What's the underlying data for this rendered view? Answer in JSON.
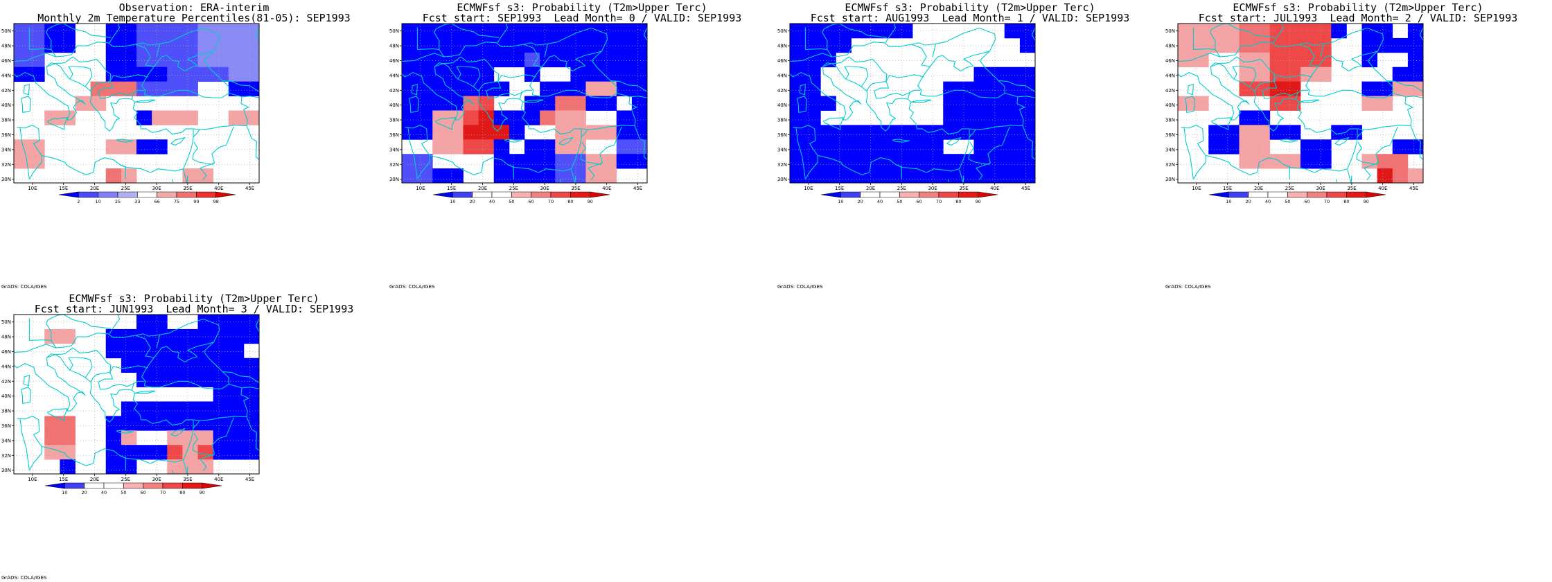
{
  "panels": [
    {
      "title_lines": [
        "Observation: ERA-interim",
        "Monthly 2m Temperature Percentiles(81-05): SEP1993"
      ],
      "colorbar": {
        "labels": [
          "2",
          "10",
          "25",
          "33",
          "66",
          "75",
          "90",
          "98"
        ],
        "colors": [
          "#0000ff",
          "#4a4afc",
          "#8080f8",
          "#b0b0f4",
          "#ffffff",
          "#f4a8a8",
          "#f47070",
          "#f03030",
          "#e00000"
        ]
      },
      "grid": [
        "BBAAWWAABBBBCCCC",
        "BBAAWWAABBBBCCCC",
        "BBWWWWAABBBBCCCC",
        "AAWWWWAAAABBBBCC",
        "WWWWWWFFBBBBWWAA",
        "WWWWEEWWWWWWWWWW",
        "WWEEWWWWAAEEWWEE",
        "WWWWWWWWWWWWWWWW",
        "EEWWWWEEAAWWWWWW",
        "EEWWWWWWWWWWWWWW",
        "WWWWWWWWWWWWWWWW"
      ],
      "cell_overrides": [
        {
          "row": 4,
          "col": 5,
          "v": "F"
        },
        {
          "row": 4,
          "col": 6,
          "v": "F"
        },
        {
          "row": 4,
          "col": 7,
          "v": "F"
        },
        {
          "row": 5,
          "col": 4,
          "v": "E"
        },
        {
          "row": 6,
          "col": 8,
          "v": "A"
        },
        {
          "row": 6,
          "col": 9,
          "v": "E"
        },
        {
          "row": 6,
          "col": 10,
          "v": "E"
        },
        {
          "row": 10,
          "col": 7,
          "v": "E"
        },
        {
          "row": 10,
          "col": 6,
          "v": "F"
        },
        {
          "row": 10,
          "col": 11,
          "v": "E"
        },
        {
          "row": 10,
          "col": 12,
          "v": "E"
        }
      ]
    },
    {
      "title_lines": [
        "ECMWFsf s3: Probability (T2m>Upper Terc)",
        "Fcst start: SEP1993  Lead Month= 0 / VALID: SEP1993"
      ],
      "colorbar": {
        "labels": [
          "10",
          "20",
          "40",
          "50",
          "60",
          "70",
          "80",
          "90"
        ],
        "colors": [
          "#0000ff",
          "#4040f8",
          "#ffffff",
          "#ffffff",
          "#f8b0b0",
          "#f48080",
          "#f04848",
          "#e81818",
          "#e00000"
        ]
      },
      "grid": [
        "AAAAAAAAAAAAAAAA",
        "AAAAAAAAAAAAAAAA",
        "AAAAAAAABBAAAAAA",
        "AAAAAAWWAAAAAAAA",
        "AAAAAAAWWAAAAAAA",
        "AAAAAAWWAAFFAAAA",
        "AAEEFFAAAAEEWWAA",
        "AAEEHHAAWWEEEEAA",
        "WWEEGGAAAAEEWWBB",
        "BBWWWWAAAABBEEAA",
        "BBAAWWAAAABBEEWW"
      ],
      "cell_overrides": [
        {
          "row": 3,
          "col": 4,
          "v": "A"
        },
        {
          "row": 4,
          "col": 4,
          "v": "A"
        },
        {
          "row": 5,
          "col": 4,
          "v": "F"
        },
        {
          "row": 5,
          "col": 5,
          "v": "G"
        },
        {
          "row": 6,
          "col": 4,
          "v": "G"
        },
        {
          "row": 6,
          "col": 5,
          "v": "H"
        },
        {
          "row": 7,
          "col": 6,
          "v": "H"
        },
        {
          "row": 8,
          "col": 7,
          "v": "W"
        },
        {
          "row": 4,
          "col": 12,
          "v": "E"
        },
        {
          "row": 4,
          "col": 13,
          "v": "E"
        },
        {
          "row": 5,
          "col": 14,
          "v": "W"
        },
        {
          "row": 6,
          "col": 9,
          "v": "F"
        },
        {
          "row": 3,
          "col": 9,
          "v": "W"
        },
        {
          "row": 3,
          "col": 10,
          "v": "W"
        },
        {
          "row": 2,
          "col": 9,
          "v": "A"
        }
      ]
    },
    {
      "title_lines": [
        "ECMWFsf s3: Probability (T2m>Upper Terc)",
        "Fcst start: AUG1993  Lead Month= 1 / VALID: SEP1993"
      ],
      "colorbar": {
        "labels": [
          "10",
          "20",
          "40",
          "50",
          "60",
          "70",
          "80",
          "90"
        ],
        "colors": [
          "#0000ff",
          "#4040f8",
          "#ffffff",
          "#ffffff",
          "#f8b0b0",
          "#f48080",
          "#f04848",
          "#e81818",
          "#e00000"
        ]
      },
      "grid": [
        "AAAAAAAAWWWWWWAA",
        "AAAAWWWWWWWWWWWA",
        "AAAWWWWWWWWWWWWW",
        "AAWWWWWWWWWWAAAA",
        "AAWWWWWWWWAAAAAA",
        "AAAWWWWWWWAAAAAA",
        "AAWWWWWWWWAAAAAA",
        "AAAAAAAAAAAAAAAA",
        "AAAAAAAAAAWWAAAA",
        "AAAAAAAAAAAAAAAA",
        "AAAAAAAAAAAAAAAA"
      ],
      "cell_overrides": []
    },
    {
      "title_lines": [
        "ECMWFsf s3: Probability (T2m>Upper Terc)",
        "Fcst start: JUL1993  Lead Month= 2 / VALID: SEP1993"
      ],
      "colorbar": {
        "labels": [
          "10",
          "20",
          "40",
          "50",
          "60",
          "70",
          "80",
          "90"
        ],
        "colors": [
          "#0000ff",
          "#4040f8",
          "#ffffff",
          "#ffffff",
          "#f8b0b0",
          "#f48080",
          "#f04848",
          "#e81818",
          "#e00000"
        ]
      },
      "grid": [
        "EEEEFFGGGGWWAAWA",
        "EEEEFFGGGGWWAAAA",
        "EEWWEEGGGGWWAAWA",
        "WWWWEEGGEEWWWWAA",
        "WWWWGGHHWWWWAAEE",
        "EEWWWWGGWWWWEEWW",
        "WWWWAAWWWWWWWWWW",
        "WWAAEEAAWWAAWWWW",
        "WWAAEEWWAAWWWWAA",
        "WWWWEEEEWAAAWWEEFF",
        "WWWWWWWWWWWWWWEEHH"
      ],
      "cell_overrides": [
        {
          "row": 0,
          "col": 10,
          "v": "A"
        },
        {
          "row": 0,
          "col": 11,
          "v": "W"
        },
        {
          "row": 2,
          "col": 13,
          "v": "W"
        },
        {
          "row": 9,
          "col": 12,
          "v": "E"
        },
        {
          "row": 9,
          "col": 13,
          "v": "F"
        },
        {
          "row": 9,
          "col": 14,
          "v": "F"
        },
        {
          "row": 9,
          "col": 15,
          "v": "W"
        },
        {
          "row": 10,
          "col": 13,
          "v": "H"
        },
        {
          "row": 10,
          "col": 14,
          "v": "F"
        },
        {
          "row": 10,
          "col": 15,
          "v": "E"
        },
        {
          "row": 9,
          "col": 8,
          "v": "A"
        },
        {
          "row": 9,
          "col": 9,
          "v": "A"
        },
        {
          "row": 9,
          "col": 10,
          "v": "W"
        },
        {
          "row": 9,
          "col": 11,
          "v": "W"
        }
      ]
    },
    {
      "title_lines": [
        "ECMWFsf s3: Probability (T2m>Upper Terc)",
        "Fcst start: JUN1993  Lead Month= 3 / VALID: SEP1993"
      ],
      "colorbar": {
        "labels": [
          "10",
          "20",
          "40",
          "50",
          "60",
          "70",
          "80",
          "90"
        ],
        "colors": [
          "#0000ff",
          "#4040f8",
          "#ffffff",
          "#ffffff",
          "#f8b0b0",
          "#f48080",
          "#f04848",
          "#e81818",
          "#e00000"
        ]
      },
      "grid": [
        "WWWWWWWWAAWWAAAA",
        "WWEEWWAAAAAAAAAA",
        "WWWWWWAAAAAAAAAW",
        "WWWWWWWAAAAAAAAA",
        "WWWWWWWWAAAAAAAA",
        "WWWWWWWWWWWWAAAA",
        "WWWWWWWAAAAAAAAA",
        "WWFFWWAAAAAAAAAA",
        "WWFFWAEEWAAEEAAA",
        "WWEEWWAAAAAGGAAA",
        "WWWAWWAAWWWEEWWW"
      ],
      "cell_overrides": [
        {
          "row": 0,
          "col": 9,
          "v": "A"
        },
        {
          "row": 5,
          "col": 0,
          "v": "W"
        },
        {
          "row": 8,
          "col": 6,
          "v": "A"
        },
        {
          "row": 8,
          "col": 5,
          "v": "W"
        },
        {
          "row": 8,
          "col": 7,
          "v": "E"
        },
        {
          "row": 8,
          "col": 8,
          "v": "W"
        },
        {
          "row": 8,
          "col": 9,
          "v": "W"
        },
        {
          "row": 8,
          "col": 10,
          "v": "E"
        },
        {
          "row": 9,
          "col": 10,
          "v": "G"
        },
        {
          "row": 9,
          "col": 11,
          "v": "E"
        },
        {
          "row": 10,
          "col": 10,
          "v": "E"
        },
        {
          "row": 10,
          "col": 3,
          "v": "A"
        },
        {
          "row": 5,
          "col": 12,
          "v": "W"
        }
      ]
    }
  ],
  "map": {
    "lon_labels": [
      "10E",
      "15E",
      "20E",
      "25E",
      "30E",
      "35E",
      "40E",
      "45E"
    ],
    "lat_labels": [
      "50N",
      "48N",
      "46N",
      "44N",
      "42N",
      "40N",
      "38N",
      "36N",
      "34N",
      "32N",
      "30N"
    ],
    "lon_values": [
      10,
      15,
      20,
      25,
      30,
      35,
      40,
      45
    ],
    "lat_values": [
      50,
      48,
      46,
      44,
      42,
      40,
      38,
      36,
      34,
      32,
      30
    ],
    "lon_range": [
      7,
      46.5
    ],
    "lat_range": [
      29.5,
      51
    ],
    "coast_color": "#00cccc",
    "grid_color": "#aaaaaa"
  },
  "credit": "GrADS: COLA/IGES",
  "palette_codes": {
    "A": "#0000ff",
    "B": "#5050fa",
    "C": "#8a8af6",
    "D": "#b8b8f4",
    "W": "#ffffff",
    "E": "#f4a4a4",
    "F": "#f07272",
    "G": "#ee4848",
    "H": "#e01818"
  }
}
